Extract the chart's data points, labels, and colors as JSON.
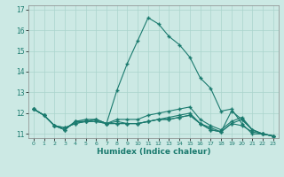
{
  "title": "",
  "xlabel": "Humidex (Indice chaleur)",
  "ylabel": "",
  "background_color": "#cce9e4",
  "grid_color": "#aad4cc",
  "line_color": "#1a7a6e",
  "xlim": [
    -0.5,
    23.5
  ],
  "ylim": [
    10.8,
    17.2
  ],
  "yticks": [
    11,
    12,
    13,
    14,
    15,
    16,
    17
  ],
  "xticks": [
    0,
    1,
    2,
    3,
    4,
    5,
    6,
    7,
    8,
    9,
    10,
    11,
    12,
    13,
    14,
    15,
    16,
    17,
    18,
    19,
    20,
    21,
    22,
    23
  ],
  "series": [
    [
      12.2,
      11.9,
      11.4,
      11.2,
      11.6,
      11.6,
      11.7,
      11.5,
      13.1,
      14.4,
      15.5,
      16.6,
      16.3,
      15.7,
      15.3,
      14.7,
      13.7,
      13.2,
      12.1,
      12.2,
      11.5,
      11.0,
      11.0,
      10.9
    ],
    [
      12.2,
      11.9,
      11.4,
      11.2,
      11.6,
      11.6,
      11.7,
      11.5,
      11.6,
      11.5,
      11.5,
      11.6,
      11.7,
      11.8,
      11.9,
      12.0,
      11.5,
      11.3,
      11.1,
      11.5,
      11.4,
      11.1,
      11.0,
      10.9
    ],
    [
      12.2,
      11.9,
      11.4,
      11.3,
      11.5,
      11.6,
      11.6,
      11.5,
      11.5,
      11.5,
      11.5,
      11.6,
      11.7,
      11.7,
      11.8,
      11.9,
      11.5,
      11.2,
      11.1,
      11.5,
      11.7,
      11.2,
      11.0,
      10.9
    ],
    [
      12.2,
      11.9,
      11.4,
      11.3,
      11.5,
      11.6,
      11.6,
      11.5,
      11.5,
      11.5,
      11.5,
      11.6,
      11.7,
      11.7,
      11.8,
      11.9,
      11.5,
      11.2,
      11.1,
      12.1,
      11.7,
      11.2,
      11.0,
      10.9
    ],
    [
      12.2,
      11.9,
      11.4,
      11.2,
      11.6,
      11.7,
      11.7,
      11.5,
      11.7,
      11.7,
      11.7,
      11.9,
      12.0,
      12.1,
      12.2,
      12.3,
      11.7,
      11.4,
      11.2,
      11.6,
      11.8,
      11.2,
      11.0,
      10.9
    ]
  ]
}
